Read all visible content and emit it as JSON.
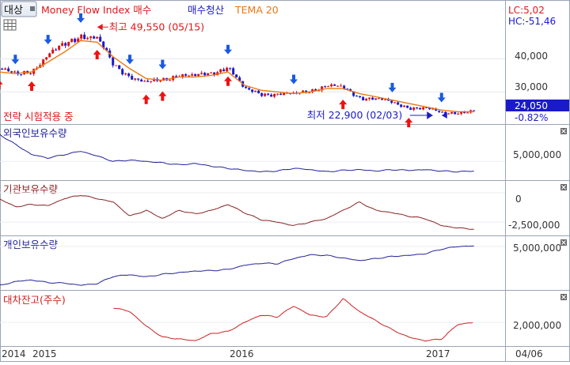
{
  "header": {
    "target_button": "대상",
    "indicator_title": "Money Flow Index 매수",
    "exit_label": "매수청산",
    "tema_label": "TEMA 20"
  },
  "price_panel": {
    "lc_label": "LC:5,02",
    "hc_label": "HC:-51,46",
    "max_annotation": "최고 49,550 (05/15)",
    "min_annotation": "최저 22,900 (02/03)",
    "strategy_status": "전략 시험적용 중",
    "current_price": "24,050",
    "change_pct": "-0.82%",
    "yticks": [
      "40,000",
      "30,000"
    ]
  },
  "panels": [
    {
      "id": "foreign",
      "label": "외국인보유수량",
      "yticks": [
        "5,000,000"
      ],
      "color": "#22229a"
    },
    {
      "id": "institution",
      "label": "기관보유수량",
      "yticks": [
        "0",
        "-2,500,000"
      ],
      "color": "#882222"
    },
    {
      "id": "individual",
      "label": "개인보유수량",
      "yticks": [
        "5,000,000"
      ],
      "color": "#22229a"
    },
    {
      "id": "lending",
      "label": "대차잔고(주수)",
      "yticks": [
        "2,000,000"
      ],
      "color": "#cc2222"
    }
  ],
  "xaxis": {
    "labels": [
      "2014",
      "2015",
      "2016",
      "2017"
    ],
    "date_label": "04/06"
  },
  "colors": {
    "up": "#dd1111",
    "down": "#1a1acc",
    "tema": "#ee7711",
    "buy_signal": "#ee1111",
    "sell_signal": "#1a5ae0",
    "price_box": "#1a1acc"
  },
  "chart_data": [
    {
      "type": "candlestick",
      "title": "Money Flow Index 매수",
      "x": [
        "2014-11",
        "2014-12",
        "2015-01",
        "2015-02",
        "2015-03",
        "2015-04",
        "2015-05",
        "2015-06",
        "2015-07",
        "2015-08",
        "2015-09",
        "2015-10",
        "2015-11",
        "2015-12",
        "2016-01",
        "2016-02",
        "2016-03",
        "2016-04",
        "2016-05",
        "2016-06",
        "2016-07",
        "2016-08",
        "2016-09",
        "2016-10",
        "2016-11",
        "2016-12",
        "2017-01",
        "2017-02",
        "2017-03",
        "2017-04"
      ],
      "close": [
        37000,
        35000,
        36500,
        41000,
        44000,
        47500,
        46000,
        38000,
        35000,
        32500,
        33500,
        35500,
        34500,
        35500,
        38000,
        30500,
        29500,
        29500,
        29000,
        30500,
        32000,
        31000,
        28500,
        28000,
        26500,
        25500,
        25000,
        23500,
        24000,
        24050
      ],
      "series": [
        {
          "name": "TEMA 20",
          "values": [
            36000,
            35500,
            36000,
            39000,
            42000,
            45500,
            45000,
            40500,
            37000,
            34000,
            33500,
            34500,
            34500,
            35000,
            36000,
            32000,
            30500,
            30000,
            29500,
            30000,
            31000,
            31000,
            29500,
            28500,
            27500,
            26500,
            25500,
            24500,
            24000,
            24000
          ]
        }
      ],
      "buy_signals": [
        "2014-11",
        "2015-01",
        "2015-05",
        "2015-08",
        "2015-09",
        "2016-01",
        "2016-08",
        "2016-12"
      ],
      "sell_signals": [
        "2014-12",
        "2015-02",
        "2015-04",
        "2015-07",
        "2015-09",
        "2016-01",
        "2016-05",
        "2016-11",
        "2017-02"
      ],
      "ylim": [
        21000,
        52000
      ],
      "yticks": [
        40000,
        30000
      ],
      "annotations": [
        {
          "text": "최고 49,550 (05/15)",
          "x": "2015-05",
          "y": 49550
        },
        {
          "text": "최저 22,900 (02/03)",
          "x": "2017-02",
          "y": 22900
        }
      ]
    },
    {
      "type": "line",
      "title": "외국인보유수량",
      "x": [
        "2014-11",
        "2014-12",
        "2015-01",
        "2015-02",
        "2015-03",
        "2015-04",
        "2015-05",
        "2015-06",
        "2015-07",
        "2015-08",
        "2015-09",
        "2015-10",
        "2015-11",
        "2015-12",
        "2016-01",
        "2016-02",
        "2016-03",
        "2016-04",
        "2016-05",
        "2016-06",
        "2016-07",
        "2016-08",
        "2016-09",
        "2016-10",
        "2016-11",
        "2016-12",
        "2017-01",
        "2017-02",
        "2017-03",
        "2017-04"
      ],
      "values": [
        9000000,
        7500000,
        6000000,
        5500000,
        6000000,
        6500000,
        5800000,
        5000000,
        5200000,
        5000000,
        4800000,
        4500000,
        4700000,
        4300000,
        4000000,
        3700000,
        3500000,
        3600000,
        4000000,
        3800000,
        3500000,
        3700000,
        3800000,
        3600000,
        3800000,
        3700000,
        3800000,
        3600000,
        3500000,
        3600000
      ],
      "ylim": [
        2500000,
        10000000
      ],
      "yticks": [
        5000000
      ]
    },
    {
      "type": "line",
      "title": "기관보유수량",
      "x": [
        "2014-11",
        "2014-12",
        "2015-01",
        "2015-02",
        "2015-03",
        "2015-04",
        "2015-05",
        "2015-06",
        "2015-07",
        "2015-08",
        "2015-09",
        "2015-10",
        "2015-11",
        "2015-12",
        "2016-01",
        "2016-02",
        "2016-03",
        "2016-04",
        "2016-05",
        "2016-06",
        "2016-07",
        "2016-08",
        "2016-09",
        "2016-10",
        "2016-11",
        "2016-12",
        "2017-01",
        "2017-02",
        "2017-03",
        "2017-04"
      ],
      "values": [
        -500000,
        -1200000,
        -1000000,
        -1100000,
        -500000,
        -200000,
        -500000,
        -800000,
        -2000000,
        -1500000,
        -2200000,
        -1500000,
        -1800000,
        -1500000,
        -1000000,
        -1700000,
        -2300000,
        -2500000,
        -2800000,
        -2500000,
        -2200000,
        -1500000,
        -800000,
        -1500000,
        -1700000,
        -2000000,
        -2200000,
        -2800000,
        -3000000,
        -3100000
      ],
      "ylim": [
        -3500000,
        800000
      ],
      "yticks": [
        0,
        -2500000
      ]
    },
    {
      "type": "line",
      "title": "개인보유수량",
      "x": [
        "2014-11",
        "2014-12",
        "2015-01",
        "2015-02",
        "2015-03",
        "2015-04",
        "2015-05",
        "2015-06",
        "2015-07",
        "2015-08",
        "2015-09",
        "2015-10",
        "2015-11",
        "2015-12",
        "2016-01",
        "2016-02",
        "2016-03",
        "2016-04",
        "2016-05",
        "2016-06",
        "2016-07",
        "2016-08",
        "2016-09",
        "2016-10",
        "2016-11",
        "2016-12",
        "2017-01",
        "2017-02",
        "2017-03",
        "2017-04"
      ],
      "values": [
        -2500000,
        -1700000,
        -1400000,
        -1900000,
        -2000000,
        -2400000,
        -2100000,
        -700000,
        -400000,
        -800000,
        -300000,
        0,
        300000,
        400000,
        600000,
        1400000,
        1800000,
        1700000,
        2700000,
        3400000,
        3300000,
        2800000,
        2300000,
        2700000,
        3100000,
        3300000,
        3600000,
        4500000,
        5000000,
        5100000
      ],
      "ylim": [
        -3000000,
        6500000
      ],
      "yticks": [
        5000000
      ]
    },
    {
      "type": "line",
      "title": "대차잔고(주수)",
      "x": [
        "2015-06",
        "2015-07",
        "2015-08",
        "2015-09",
        "2015-10",
        "2015-11",
        "2015-12",
        "2016-01",
        "2016-02",
        "2016-03",
        "2016-04",
        "2016-05",
        "2016-06",
        "2016-07",
        "2016-08",
        "2016-09",
        "2016-10",
        "2016-11",
        "2016-12",
        "2017-01",
        "2017-02",
        "2017-03",
        "2017-04"
      ],
      "values": [
        2800000,
        2600000,
        1800000,
        1200000,
        1100000,
        1000000,
        1400000,
        1500000,
        2000000,
        2400000,
        2300000,
        2900000,
        2400000,
        2300000,
        3300000,
        2600000,
        2100000,
        1600000,
        1200000,
        1000000,
        1100000,
        1900000,
        2000000
      ],
      "ylim": [
        800000,
        3600000
      ],
      "yticks": [
        2000000
      ]
    }
  ]
}
